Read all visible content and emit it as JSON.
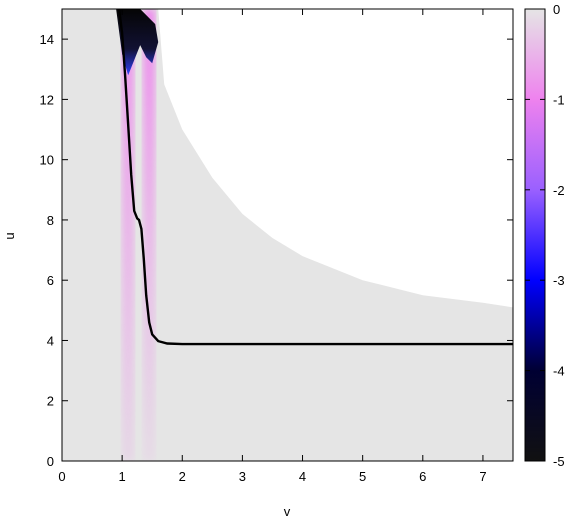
{
  "chart_data": {
    "type": "heatmap",
    "title": "",
    "xlabel": "v",
    "ylabel": "u",
    "xlim": [
      0,
      7.5
    ],
    "ylim": [
      0,
      15
    ],
    "x_ticks": [
      "0",
      "1",
      "2",
      "3",
      "4",
      "5",
      "6",
      "7"
    ],
    "y_ticks": [
      "0",
      "2",
      "4",
      "6",
      "8",
      "10",
      "12",
      "14"
    ],
    "colorbar": {
      "range": [
        -5,
        0
      ],
      "ticks": [
        "0",
        "-1",
        "-2",
        "-3",
        "-4",
        "-5"
      ],
      "colors": [
        "#111111",
        "#0000ff",
        "#ee82ee",
        "#e5e5e5"
      ]
    },
    "background_color": "#e5e5e5",
    "domain_boundary": {
      "description_points_v_u": [
        [
          1.6,
          15
        ],
        [
          1.7,
          12.5
        ],
        [
          2,
          11
        ],
        [
          2.5,
          9.4
        ],
        [
          3,
          8.2
        ],
        [
          3.5,
          7.4
        ],
        [
          4,
          6.8
        ],
        [
          5,
          6
        ],
        [
          6,
          5.5
        ],
        [
          7,
          5.25
        ],
        [
          7.5,
          5.1
        ]
      ]
    },
    "dark_region": {
      "points_v_u": [
        [
          0.9,
          15
        ],
        [
          1.0,
          13.5
        ],
        [
          1.1,
          12.8
        ],
        [
          1.2,
          13.3
        ],
        [
          1.3,
          13.8
        ],
        [
          1.4,
          13.4
        ],
        [
          1.5,
          13.2
        ],
        [
          1.6,
          13.9
        ],
        [
          1.55,
          14.5
        ],
        [
          1.3,
          15
        ]
      ]
    },
    "bands": [
      {
        "v": 1.1,
        "color": "#ee82ee"
      },
      {
        "v": 1.45,
        "color": "#ee82ee"
      }
    ],
    "series": [
      {
        "type": "line",
        "color": "#000000",
        "points": [
          [
            0.95,
            15
          ],
          [
            1.0,
            14.2
          ],
          [
            1.05,
            12.8
          ],
          [
            1.1,
            11.2
          ],
          [
            1.15,
            9.5
          ],
          [
            1.2,
            8.3
          ],
          [
            1.25,
            8.05
          ],
          [
            1.28,
            8.0
          ],
          [
            1.32,
            7.7
          ],
          [
            1.36,
            6.7
          ],
          [
            1.4,
            5.5
          ],
          [
            1.45,
            4.6
          ],
          [
            1.5,
            4.2
          ],
          [
            1.6,
            3.98
          ],
          [
            1.75,
            3.9
          ],
          [
            2.0,
            3.88
          ],
          [
            3,
            3.88
          ],
          [
            4,
            3.88
          ],
          [
            5,
            3.88
          ],
          [
            6,
            3.88
          ],
          [
            7,
            3.88
          ],
          [
            7.5,
            3.88
          ]
        ]
      }
    ]
  }
}
